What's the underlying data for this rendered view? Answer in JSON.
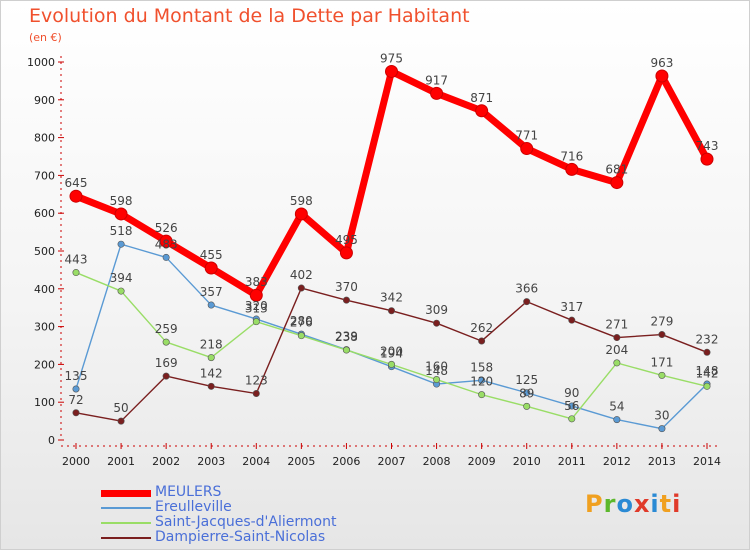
{
  "title": "Evolution du Montant de la Dette par Habitant",
  "subtitle": "(en €)",
  "logo_text": "Proxiti",
  "logo_colors": [
    "#f0a020",
    "#5cb82c",
    "#2a8ad4",
    "#e03a2a",
    "#2a8ad4",
    "#f0a020",
    "#e03a2a"
  ],
  "chart_data": {
    "type": "line",
    "title": "Evolution du Montant de la Dette par Habitant",
    "ylabel": "(en €)",
    "xlabel": "",
    "x": [
      "2000",
      "2001",
      "2002",
      "2003",
      "2004",
      "2005",
      "2006",
      "2007",
      "2008",
      "2009",
      "2010",
      "2011",
      "2012",
      "2013",
      "2014"
    ],
    "yticks": [
      "0",
      "100",
      "200",
      "300",
      "400",
      "500",
      "600",
      "700",
      "800",
      "900",
      "1000"
    ],
    "ylim": [
      0,
      1000
    ],
    "grid": false,
    "legend_position": "bottom-left",
    "series": [
      {
        "name": "MEULERS",
        "color": "#ff0000",
        "values": [
          645,
          598,
          526,
          455,
          383,
          598,
          495,
          975,
          917,
          871,
          771,
          716,
          681,
          963,
          743
        ],
        "labels": [
          "645",
          "598",
          "526",
          "455",
          "383",
          "598",
          "495",
          "975",
          "917",
          "871",
          "771",
          "716",
          "681",
          "963",
          "743"
        ]
      },
      {
        "name": "Ereulleville",
        "color": "#5a9ad4",
        "values": [
          135,
          518,
          483,
          357,
          320,
          280,
          239,
          194,
          148,
          158,
          125,
          90,
          54,
          30,
          148
        ],
        "labels": [
          "135",
          "518",
          "483",
          "357",
          "320",
          "280",
          "239",
          "194",
          "148",
          "158",
          "125",
          "90",
          "54",
          "30",
          "148"
        ]
      },
      {
        "name": "Saint-Jacques-d'Aliermont",
        "color": "#99dd66",
        "values": [
          443,
          394,
          259,
          218,
          313,
          276,
          238,
          200,
          160,
          120,
          89,
          56,
          204,
          171,
          142
        ],
        "labels": [
          "443",
          "394",
          "259",
          "218",
          "313",
          "276",
          "238",
          "200",
          "160",
          "120",
          "89",
          "56",
          "204",
          "171",
          "142"
        ]
      },
      {
        "name": "Dampierre-Saint-Nicolas",
        "color": "#7a1f1f",
        "values": [
          72,
          50,
          169,
          142,
          123,
          402,
          370,
          342,
          309,
          262,
          366,
          317,
          271,
          279,
          232
        ],
        "labels": [
          "72",
          "50",
          "169",
          "142",
          "123",
          "402",
          "370",
          "342",
          "309",
          "262",
          "366",
          "317",
          "271",
          "279",
          "232"
        ]
      }
    ]
  }
}
